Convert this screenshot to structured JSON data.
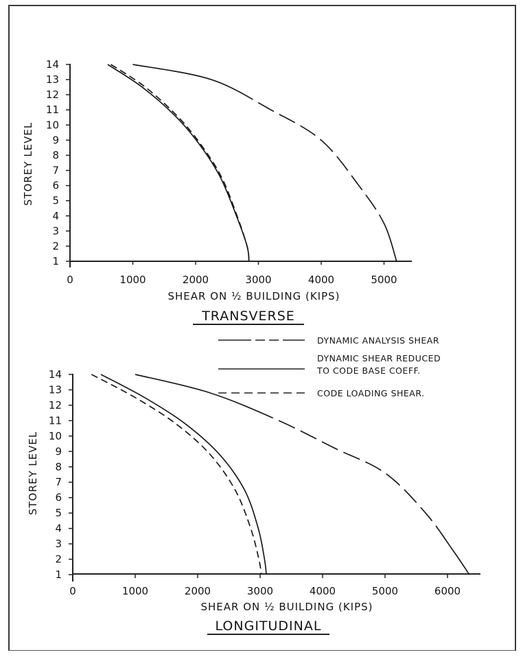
{
  "legend": {
    "entries": [
      {
        "label": "DYNAMIC ANALYSIS SHEAR",
        "style": "long-dash"
      },
      {
        "label_line1": "DYNAMIC SHEAR REDUCED",
        "label_line2": "TO CODE BASE COEFF.",
        "style": "solid"
      },
      {
        "label": "CODE LOADING SHEAR.",
        "style": "dashed"
      }
    ]
  },
  "chart_data": [
    {
      "type": "line",
      "caption": "TRANSVERSE",
      "xlabel": "SHEAR ON ½ BUILDING (KIPS)",
      "ylabel": "STOREY LEVEL",
      "xlim": [
        0,
        5300
      ],
      "ylim": [
        1,
        14
      ],
      "xticks": [
        0,
        1000,
        2000,
        3000,
        4000,
        5000
      ],
      "yticks": [
        1,
        2,
        3,
        4,
        5,
        6,
        7,
        8,
        9,
        10,
        11,
        12,
        13,
        14
      ],
      "grid": false,
      "series": [
        {
          "name": "DYNAMIC ANALYSIS SHEAR",
          "style": "long-dash",
          "x": [
            1000,
            2250,
            3200,
            4000,
            4600,
            5000,
            5200
          ],
          "y": [
            14,
            13,
            11,
            9,
            6,
            3.5,
            1
          ]
        },
        {
          "name": "DYNAMIC SHEAR REDUCED TO CODE BASE COEFF.",
          "style": "solid",
          "x": [
            600,
            1150,
            1700,
            2100,
            2400,
            2650,
            2820,
            2850
          ],
          "y": [
            14,
            12.5,
            10.5,
            8.5,
            6.5,
            4,
            2,
            1
          ]
        },
        {
          "name": "CODE LOADING SHEAR.",
          "style": "dashed",
          "x": [
            650,
            1200,
            1730,
            2120,
            2420,
            2660,
            2820,
            2850
          ],
          "y": [
            14,
            12.5,
            10.5,
            8.5,
            6.5,
            4,
            2,
            1
          ]
        }
      ]
    },
    {
      "type": "line",
      "caption": "LONGITUDINAL",
      "xlabel": "SHEAR ON ½ BUILDING (KIPS)",
      "ylabel": "STOREY LEVEL",
      "xlim": [
        0,
        6300
      ],
      "ylim": [
        1,
        14
      ],
      "xticks": [
        0,
        1000,
        2000,
        3000,
        4000,
        5000,
        6000
      ],
      "yticks": [
        1,
        2,
        3,
        4,
        5,
        6,
        7,
        8,
        9,
        10,
        11,
        12,
        13,
        14
      ],
      "grid": false,
      "series": [
        {
          "name": "DYNAMIC ANALYSIS SHEAR",
          "style": "long-dash",
          "x": [
            1000,
            2200,
            3300,
            4200,
            5000,
            5650,
            6100,
            6350
          ],
          "y": [
            14,
            12.8,
            11,
            9.2,
            7.6,
            5,
            2.5,
            1
          ]
        },
        {
          "name": "DYNAMIC SHEAR REDUCED TO CODE BASE COEFF.",
          "style": "solid",
          "x": [
            450,
            1150,
            1800,
            2350,
            2750,
            2970,
            3070,
            3100
          ],
          "y": [
            14,
            12.5,
            10.8,
            8.8,
            6.5,
            4,
            2,
            1
          ]
        },
        {
          "name": "CODE LOADING SHEAR.",
          "style": "dashed",
          "x": [
            300,
            1000,
            1650,
            2200,
            2600,
            2850,
            2980,
            3020
          ],
          "y": [
            14,
            12.5,
            10.8,
            8.8,
            6.5,
            4,
            2,
            1
          ]
        }
      ]
    }
  ]
}
